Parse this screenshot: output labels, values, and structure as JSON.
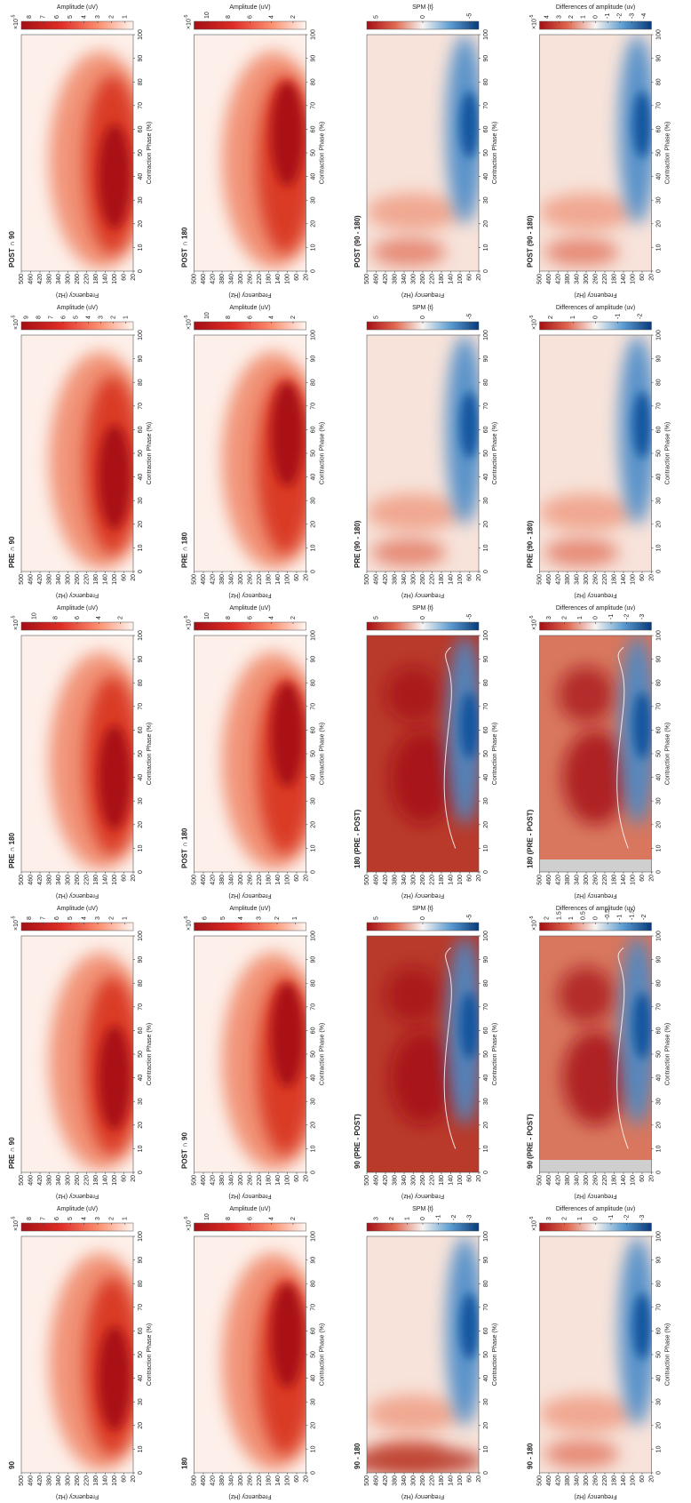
{
  "chart_data": {
    "type": "heatmap",
    "xlabel": "Contraction Phase (%)",
    "xlim": [
      0,
      100
    ],
    "xticks": [
      0,
      10,
      20,
      30,
      40,
      50,
      60,
      70,
      80,
      90,
      100
    ],
    "ylabel": "Frequency (Hz)",
    "ylim": [
      20,
      500
    ],
    "yticks": [
      20,
      60,
      100,
      140,
      180,
      220,
      260,
      300,
      340,
      380,
      420,
      460,
      500
    ],
    "exponent": {
      "base": "×10",
      "power": "-5"
    },
    "rows": [
      [
        {
          "title": "90",
          "colormap": "reds",
          "colorbar_label": "Amplitude (uV)",
          "clim": [
            0.4,
            8.6
          ],
          "cticks": [
            1,
            2,
            3,
            4,
            5,
            6,
            7,
            8
          ],
          "exponent": true
        },
        {
          "title": "PRE ∩ 90",
          "colormap": "reds",
          "colorbar_label": "Amplitude (uV)",
          "clim": [
            0.4,
            8.6
          ],
          "cticks": [
            1,
            2,
            3,
            4,
            5,
            6,
            7,
            8
          ],
          "exponent": true
        },
        {
          "title": "PRE ∩ 180",
          "colormap": "reds",
          "colorbar_label": "Amplitude (uV)",
          "clim": [
            0.8,
            11.2
          ],
          "cticks": [
            2,
            4,
            6,
            8,
            10
          ],
          "exponent": true
        },
        {
          "title": "PRE ∩ 90",
          "colormap": "reds",
          "colorbar_label": "Amplitude (uV)",
          "clim": [
            0.4,
            9.4
          ],
          "cticks": [
            1,
            2,
            3,
            4,
            5,
            6,
            7,
            8,
            9
          ],
          "exponent": true
        },
        {
          "title": "POST ∩ 90",
          "colormap": "reds",
          "colorbar_label": "Amplitude (uV)",
          "clim": [
            0.4,
            8.6
          ],
          "cticks": [
            1,
            2,
            3,
            4,
            5,
            6,
            7,
            8
          ],
          "exponent": true
        }
      ],
      [
        {
          "title": "180",
          "colormap": "reds",
          "colorbar_label": "Amplitude (uV)",
          "clim": [
            0.8,
            11.2
          ],
          "cticks": [
            2,
            4,
            6,
            8,
            10
          ],
          "exponent": true
        },
        {
          "title": "POST ∩ 90",
          "colormap": "reds",
          "colorbar_label": "Amplitude (uV)",
          "clim": [
            0.4,
            6.6
          ],
          "cticks": [
            1,
            2,
            3,
            4,
            5,
            6
          ],
          "exponent": true
        },
        {
          "title": "POST ∩ 180",
          "colormap": "reds",
          "colorbar_label": "Amplitude (uV)",
          "clim": [
            0.8,
            11.2
          ],
          "cticks": [
            2,
            4,
            6,
            8,
            10
          ],
          "exponent": true
        },
        {
          "title": "PRE ∩ 180",
          "colormap": "reds",
          "colorbar_label": "Amplitude (uV)",
          "clim": [
            0.8,
            11.2
          ],
          "cticks": [
            2,
            4,
            6,
            8,
            10
          ],
          "exponent": true
        },
        {
          "title": "POST ∩ 180",
          "colormap": "reds",
          "colorbar_label": "Amplitude (uV)",
          "clim": [
            0.8,
            11.2
          ],
          "cticks": [
            2,
            4,
            6,
            8,
            10
          ],
          "exponent": true
        }
      ],
      [
        {
          "title": "90 - 180",
          "colormap": "diverging",
          "colorbar_label": "SPM {t}",
          "clim": [
            -3.6,
            3.6
          ],
          "cticks": [
            -3,
            -2,
            -1,
            0,
            1,
            2,
            3
          ],
          "exponent": false
        },
        {
          "title": "90 (PRE - POST)",
          "colormap": "diverging",
          "colorbar_label": "SPM {t}",
          "clim": [
            -6,
            6
          ],
          "cticks": [
            -5,
            0,
            5
          ],
          "exponent": false
        },
        {
          "title": "180 (PRE - POST)",
          "colormap": "diverging",
          "colorbar_label": "SPM {t}",
          "clim": [
            -6,
            6
          ],
          "cticks": [
            -5,
            0,
            5
          ],
          "exponent": false
        },
        {
          "title": "PRE (90 - 180)",
          "colormap": "diverging",
          "colorbar_label": "SPM {t}",
          "clim": [
            -6,
            6
          ],
          "cticks": [
            -5,
            0,
            5
          ],
          "exponent": false
        },
        {
          "title": "POST (90 - 180)",
          "colormap": "diverging",
          "colorbar_label": "SPM {t}",
          "clim": [
            -6,
            6
          ],
          "cticks": [
            -5,
            0,
            5
          ],
          "exponent": false
        }
      ],
      [
        {
          "title": "90 - 180",
          "colormap": "diverging",
          "colorbar_label": "Differences of amplitude (uv)",
          "clim": [
            -3.6,
            3.6
          ],
          "cticks": [
            -3,
            -2,
            -1,
            0,
            1,
            2,
            3
          ],
          "exponent": true
        },
        {
          "title": "90 (PRE - POST)",
          "colormap": "diverging",
          "colorbar_label": "Differences of amplitude (uv)",
          "clim": [
            -2.3,
            2.3
          ],
          "cticks": [
            -2,
            -1.5,
            -1,
            -0.5,
            0,
            0.5,
            1,
            1.5,
            2
          ],
          "exponent": true
        },
        {
          "title": "180 (PRE - POST)",
          "colormap": "diverging",
          "colorbar_label": "Differences of amplitude (uv)",
          "clim": [
            -3.6,
            3.6
          ],
          "cticks": [
            -3,
            -2,
            -1,
            0,
            1,
            2,
            3
          ],
          "exponent": true
        },
        {
          "title": "PRE (90 - 180)",
          "colormap": "diverging",
          "colorbar_label": "Differences of amplitude (uv)",
          "clim": [
            -2.5,
            2.5
          ],
          "cticks": [
            -2,
            -1,
            0,
            1,
            2
          ],
          "exponent": true
        },
        {
          "title": "POST (90 - 180)",
          "colormap": "diverging",
          "colorbar_label": "Differences of amplitude (uv)",
          "clim": [
            -4.6,
            4.6
          ],
          "cticks": [
            -4,
            -3,
            -2,
            -1,
            0,
            1,
            2,
            3,
            4
          ],
          "exponent": true
        }
      ]
    ]
  }
}
